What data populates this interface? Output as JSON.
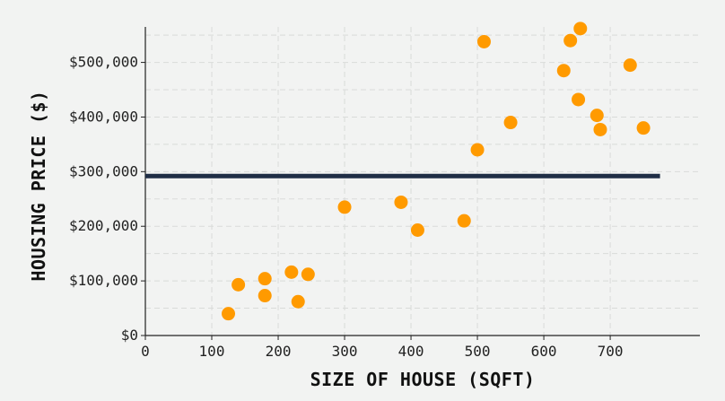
{
  "chart_data": {
    "type": "scatter",
    "xlabel": "SIZE OF HOUSE (SQFT)",
    "ylabel": "HOUSING PRICE ($)",
    "xlim": [
      0,
      835
    ],
    "ylim": [
      0,
      565000
    ],
    "x_ticks": [
      0,
      100,
      200,
      300,
      400,
      500,
      600,
      700
    ],
    "x_tick_labels": [
      "0",
      "100",
      "200",
      "300",
      "400",
      "500",
      "600",
      "700"
    ],
    "y_ticks": [
      0,
      100000,
      200000,
      300000,
      400000,
      500000
    ],
    "y_tick_labels": [
      "$0",
      "$100,000",
      "$200,000",
      "$300,000",
      "$400,000",
      "$500,000"
    ],
    "grid": true,
    "series": [
      {
        "color": "#ff9a00",
        "points": [
          {
            "x": 125,
            "y": 40000
          },
          {
            "x": 140,
            "y": 93000
          },
          {
            "x": 180,
            "y": 73000
          },
          {
            "x": 180,
            "y": 104000
          },
          {
            "x": 220,
            "y": 116000
          },
          {
            "x": 230,
            "y": 62000
          },
          {
            "x": 245,
            "y": 112000
          },
          {
            "x": 300,
            "y": 235000
          },
          {
            "x": 385,
            "y": 244000
          },
          {
            "x": 410,
            "y": 193000
          },
          {
            "x": 480,
            "y": 210000
          },
          {
            "x": 500,
            "y": 340000
          },
          {
            "x": 510,
            "y": 538000
          },
          {
            "x": 550,
            "y": 390000
          },
          {
            "x": 630,
            "y": 485000
          },
          {
            "x": 640,
            "y": 540000
          },
          {
            "x": 652,
            "y": 432000
          },
          {
            "x": 655,
            "y": 562000
          },
          {
            "x": 680,
            "y": 403000
          },
          {
            "x": 685,
            "y": 377000
          },
          {
            "x": 730,
            "y": 495000
          },
          {
            "x": 750,
            "y": 380000
          }
        ]
      }
    ],
    "hline": {
      "y": 292000,
      "x_from": 0,
      "x_to": 775,
      "color": "#1f2d45"
    }
  }
}
